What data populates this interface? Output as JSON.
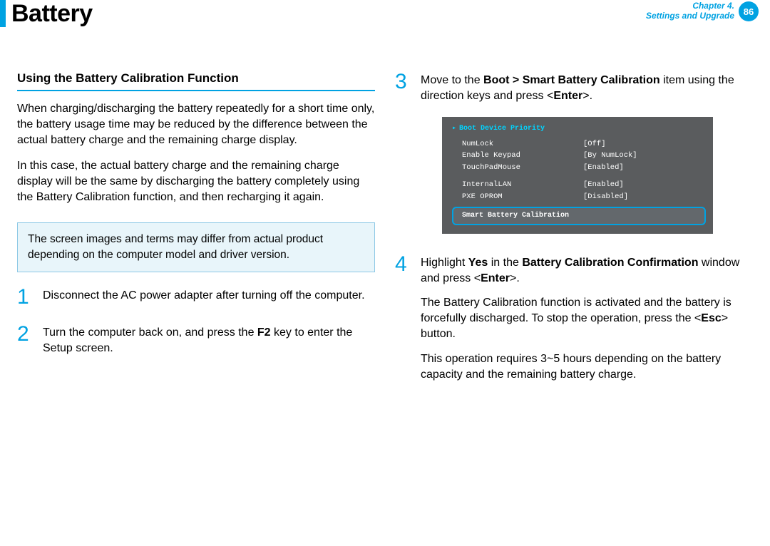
{
  "colors": {
    "accent": "#00a2e2",
    "note_bg": "#e8f5fa",
    "note_border": "#8cc8e5",
    "bios_bg": "#5a5c5e",
    "bios_head": "#00d4ff"
  },
  "header": {
    "title": "Battery",
    "chapter_line1": "Chapter 4.",
    "chapter_line2": "Settings and Upgrade",
    "page_number": "86"
  },
  "left": {
    "subhead": "Using the Battery Calibration Function",
    "intro_p1": "When charging/discharging the battery repeatedly for a short time only, the battery usage time may be reduced by the difference between the actual battery charge and the remaining charge display.",
    "intro_p2": "In this case, the actual battery charge and the remaining charge display will be the same by discharging the battery completely using the Battery Calibration function, and then recharging it again.",
    "note": "The screen images and terms may differ from actual product depending on the computer model and driver version.",
    "steps": [
      {
        "n": "1",
        "html": "Disconnect the AC power adapter after turning off the computer."
      },
      {
        "n": "2",
        "html": "Turn the computer back on, and press the <b>F2</b> key to enter the Setup screen."
      }
    ]
  },
  "right": {
    "step3": {
      "n": "3",
      "html": "Move to the <b>Boot > Smart Battery Calibration</b> item using the direction keys and press &lt;<b>Enter</b>&gt;."
    },
    "step4": {
      "n": "4",
      "p1": "Highlight <b>Yes</b> in the <b>Battery Calibration Confirmation</b> window and press &lt;<b>Enter</b>&gt;.",
      "p2": "The Battery Calibration function is activated and the battery is forcefully discharged. To stop the operation, press the &lt;<b>Esc</b>&gt; button.",
      "p3": "This operation requires 3~5 hours depending on the battery capacity and the remaining battery charge."
    }
  },
  "bios": {
    "heading": "Boot Device Priority",
    "rows": [
      {
        "k": "NumLock",
        "v": "[Off]"
      },
      {
        "k": "Enable Keypad",
        "v": "[By NumLock]"
      },
      {
        "k": "TouchPadMouse",
        "v": "[Enabled]"
      }
    ],
    "rows2": [
      {
        "k": "InternalLAN",
        "v": "[Enabled]"
      },
      {
        "k": "PXE OPROM",
        "v": "[Disabled]"
      }
    ],
    "highlight": "Smart Battery Calibration"
  }
}
